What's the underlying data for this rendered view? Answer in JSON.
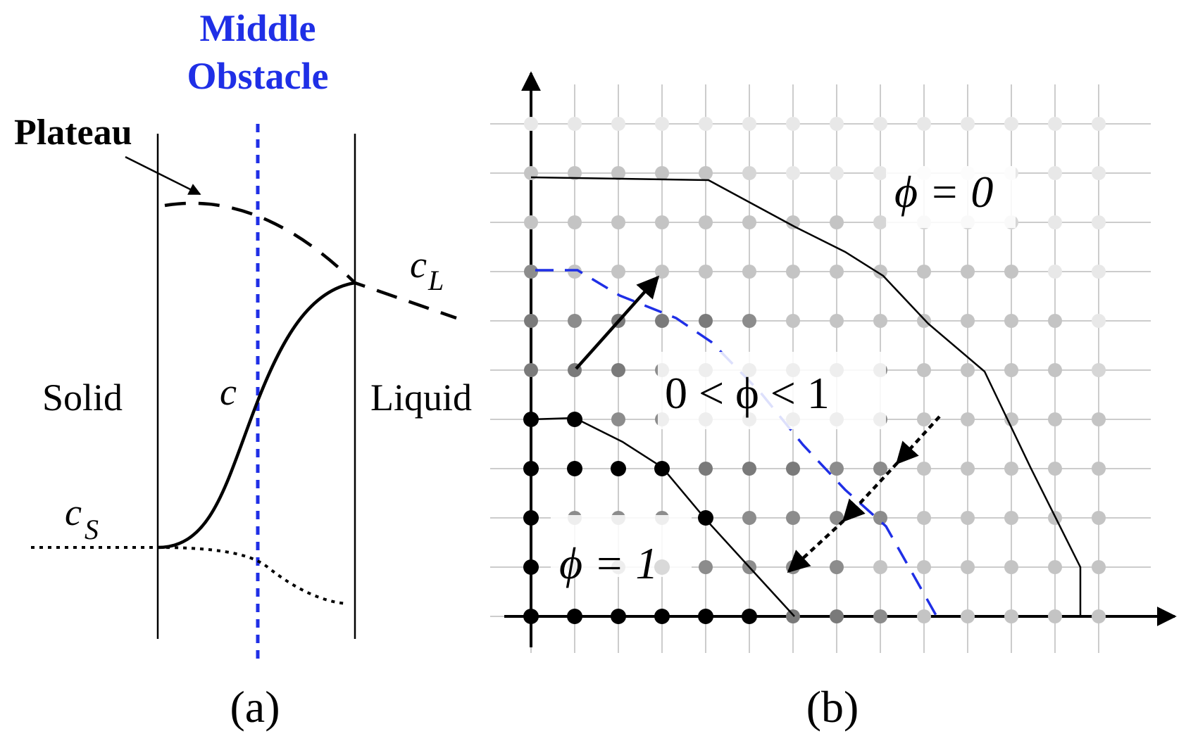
{
  "panel_a": {
    "title_line1": "Middle",
    "title_line2": "Obstacle",
    "plateau_label": "Plateau",
    "cL_base": "c",
    "cL_sub": "L",
    "c_label": "c",
    "cS_base": "c",
    "cS_sub": "S",
    "solid_label": "Solid",
    "liquid_label": "Liquid",
    "caption": "(a)",
    "colors": {
      "obstacle": "#1f2fe6",
      "curve": "#000000"
    }
  },
  "panel_b": {
    "phi0_label": "ϕ = 0",
    "phi_mid_label": "0 < ϕ < 1",
    "phi1_label": "ϕ = 1",
    "caption": "(b)",
    "colors": {
      "phi1": "#000000",
      "phi_mid_dark": "#8c8c8c",
      "phi_mid_light": "#c4c4c4",
      "phi0": "#e8e8e8",
      "grid": "#cccccc",
      "dashed": "#1f2fe6"
    },
    "grid_columns": 14,
    "grid_rows": 11,
    "node_levels": [
      [
        1,
        1,
        1,
        1,
        1,
        1,
        0.55,
        0.55,
        0.45,
        0.3,
        0.3,
        0.3,
        0.3,
        0.3
      ],
      [
        1,
        0.45,
        0.45,
        1,
        0.45,
        0.45,
        0.45,
        0.45,
        0.3,
        0.3,
        0.3,
        0.3,
        0.3,
        0.3
      ],
      [
        1,
        0.45,
        0.45,
        0.45,
        1,
        0.5,
        0.45,
        0.45,
        0.5,
        0.3,
        0.3,
        0.3,
        0.3,
        0.3
      ],
      [
        1,
        1,
        1,
        1,
        0.55,
        0.55,
        0.55,
        0.5,
        0.45,
        0.3,
        0.3,
        0.3,
        0.3,
        0.3
      ],
      [
        1,
        1,
        0.5,
        0.5,
        0.45,
        0.45,
        0.45,
        0.45,
        0.45,
        0.3,
        0.3,
        0.3,
        0.3,
        0.3
      ],
      [
        0.6,
        0.6,
        0.6,
        0.5,
        0.45,
        0.45,
        0.45,
        0.45,
        0.45,
        0.3,
        0.3,
        0.3,
        0.3,
        0.2
      ],
      [
        0.6,
        0.45,
        0.6,
        0.6,
        0.6,
        0.45,
        0.3,
        0.3,
        0.3,
        0.3,
        0.3,
        0.3,
        0.3,
        0.1
      ],
      [
        0.5,
        0.3,
        0.3,
        0.3,
        0.3,
        0.3,
        0.3,
        0.3,
        0.3,
        0.3,
        0.3,
        0.3,
        0.1,
        0.1
      ],
      [
        0.3,
        0.3,
        0.3,
        0.3,
        0.3,
        0.3,
        0.3,
        0.3,
        0.2,
        0.2,
        0.2,
        0.2,
        0.1,
        0.1
      ],
      [
        0.3,
        0.3,
        0.3,
        0.3,
        0.3,
        0.2,
        0.1,
        0.1,
        0.1,
        0.1,
        0.1,
        0.1,
        0.1,
        0.1
      ],
      [
        0.1,
        0.1,
        0.1,
        0.1,
        0.1,
        0.1,
        0.1,
        0.1,
        0.1,
        0.1,
        0.1,
        0.1,
        0.1,
        0.1
      ]
    ]
  }
}
